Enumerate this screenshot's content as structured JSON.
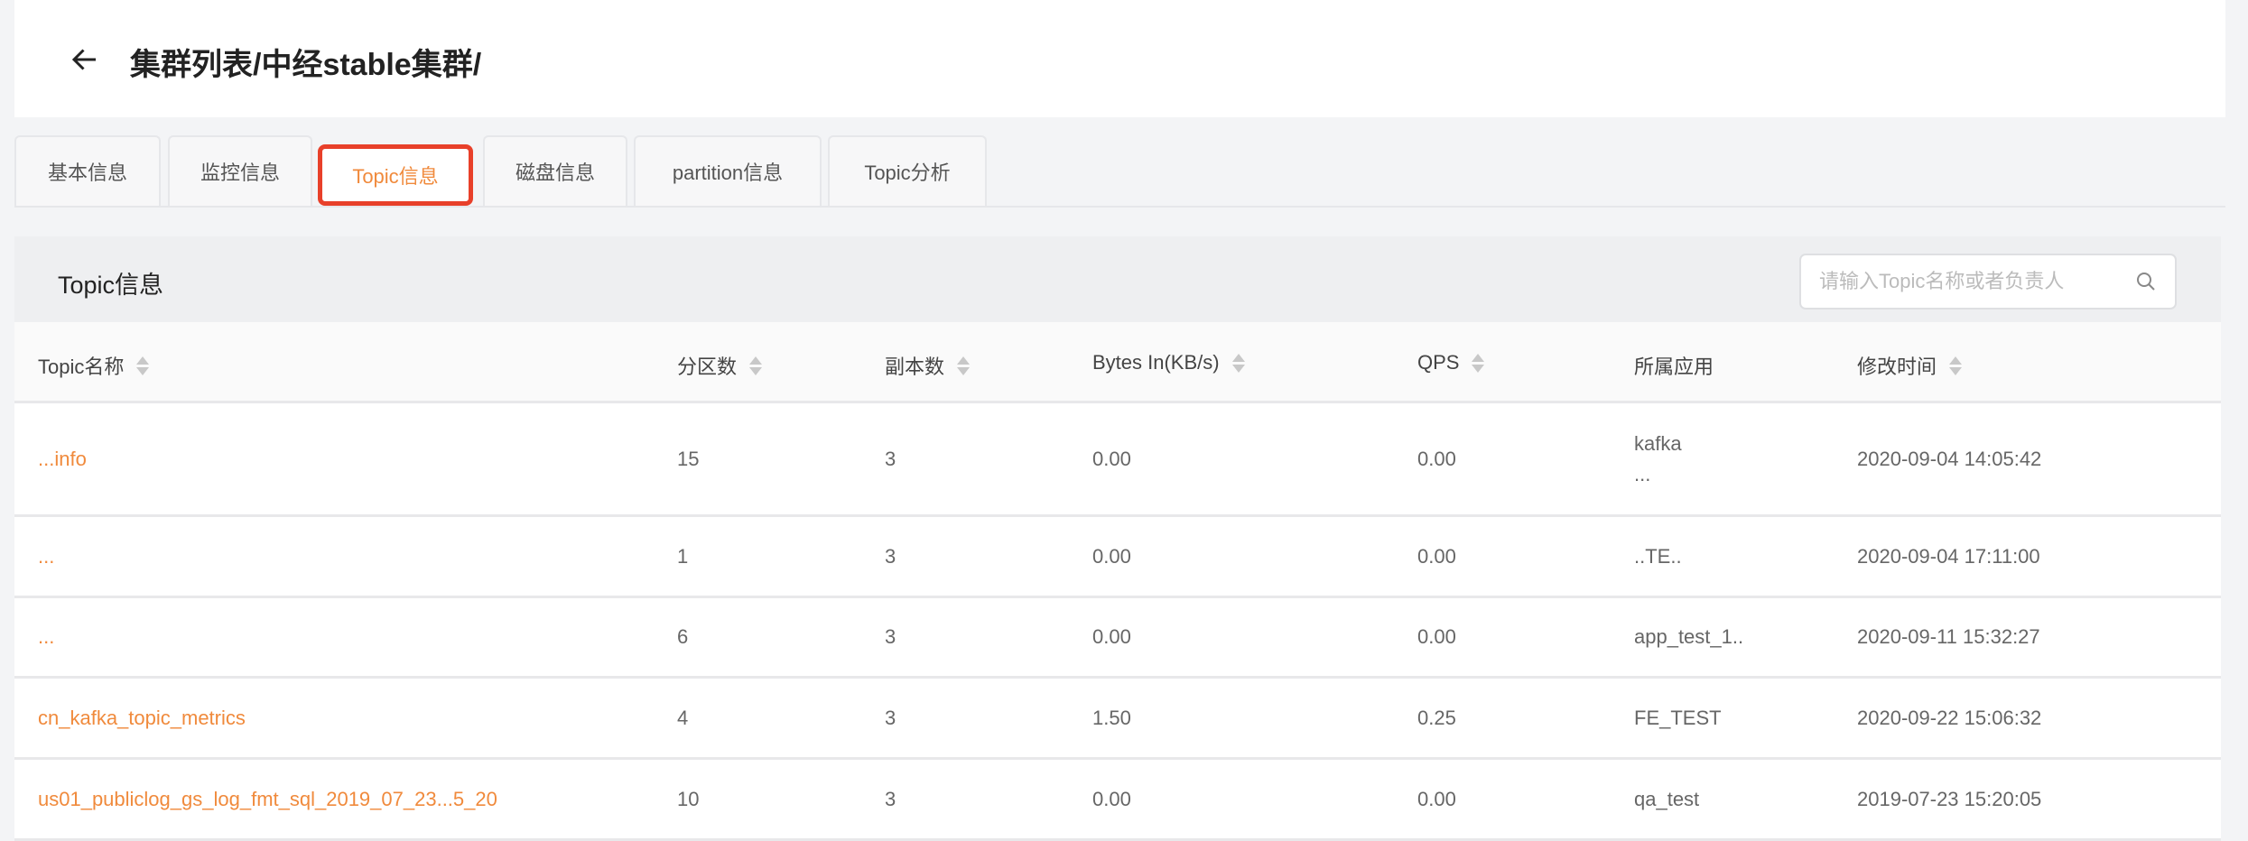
{
  "header": {
    "title": "集群列表/中经stable集群/",
    "back_icon": "arrow-left-icon"
  },
  "tabs": [
    {
      "label": "基本信息"
    },
    {
      "label": "监控信息"
    },
    {
      "label": "Topic信息",
      "active": true
    },
    {
      "label": "磁盘信息"
    },
    {
      "label": "partition信息"
    },
    {
      "label": "Topic分析"
    }
  ],
  "panel": {
    "title": "Topic信息",
    "search_placeholder": "请输入Topic名称或者负责人",
    "search_value": ""
  },
  "table": {
    "columns": [
      "Topic名称",
      "分区数",
      "副本数",
      "Bytes In(KB/s)",
      "QPS",
      "所属应用",
      "修改时间"
    ],
    "rows": [
      {
        "name": "...info",
        "partitions": "15",
        "replicas": "3",
        "bytes_in": "0.00",
        "qps": "0.00",
        "app": "kafka",
        "app2": "...",
        "time": "2020-09-04 14:05:42"
      },
      {
        "name": "...",
        "partitions": "1",
        "replicas": "3",
        "bytes_in": "0.00",
        "qps": "0.00",
        "app": "..TE..",
        "time": "2020-09-04 17:11:00"
      },
      {
        "name": "...",
        "partitions": "6",
        "replicas": "3",
        "bytes_in": "0.00",
        "qps": "0.00",
        "app": "app_test_1..",
        "time": "2020-09-11 15:32:27"
      },
      {
        "name": "cn_kafka_topic_metrics",
        "partitions": "4",
        "replicas": "3",
        "bytes_in": "1.50",
        "qps": "0.25",
        "app": "FE_TEST",
        "time": "2020-09-22 15:06:32"
      },
      {
        "name": "us01_publiclog_gs_log_fmt_sql_2019_07_23...5_20",
        "partitions": "10",
        "replicas": "3",
        "bytes_in": "0.00",
        "qps": "0.00",
        "app": "qa_test",
        "time": "2019-07-23 15:20:05"
      }
    ]
  },
  "colors": {
    "accent": "#f08a3c",
    "highlight": "#e8402a"
  }
}
